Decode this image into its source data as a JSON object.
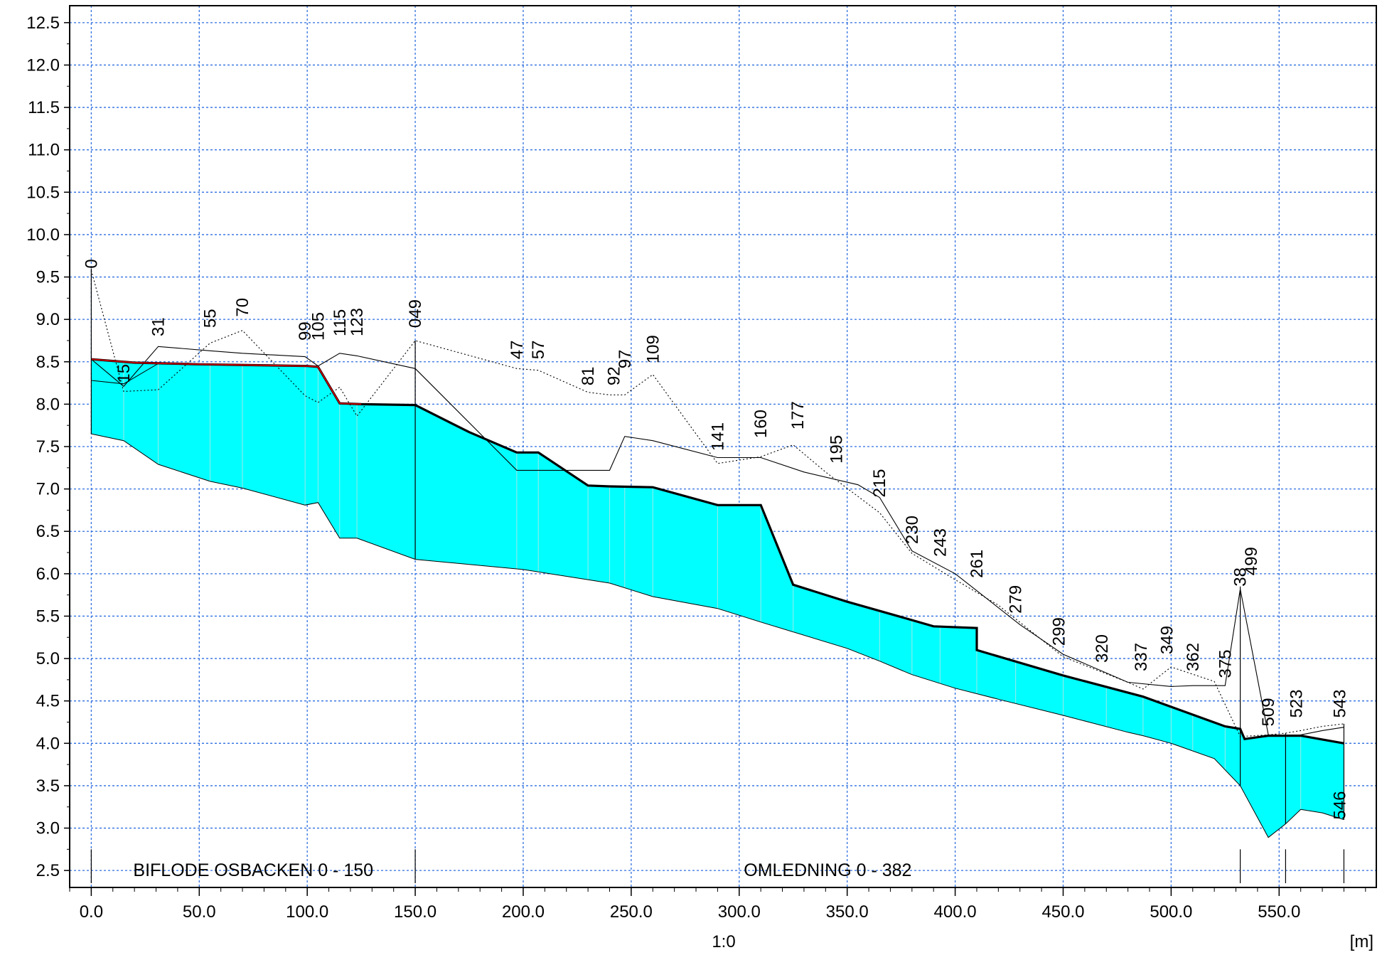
{
  "chart_data": {
    "type": "area",
    "title": "",
    "xlabel": "1:0",
    "unit_label": "[m]",
    "xlim": [
      -10,
      595
    ],
    "ylim": [
      2.3,
      12.7
    ],
    "grid": true,
    "x_ticks": [
      0,
      50,
      100,
      150,
      200,
      250,
      300,
      350,
      400,
      450,
      500,
      550
    ],
    "x_tick_labels": [
      "0.0",
      "50.0",
      "100.0",
      "150.0",
      "200.0",
      "250.0",
      "300.0",
      "350.0",
      "400.0",
      "450.0",
      "500.0",
      "550.0"
    ],
    "y_ticks": [
      2.5,
      3.0,
      3.5,
      4.0,
      4.5,
      5.0,
      5.5,
      6.0,
      6.5,
      7.0,
      7.5,
      8.0,
      8.5,
      9.0,
      9.5,
      10.0,
      10.5,
      11.0,
      11.5,
      12.0,
      12.5
    ],
    "y_tick_labels": [
      "2.5",
      "3.0",
      "3.5",
      "4.0",
      "4.5",
      "5.0",
      "5.5",
      "6.0",
      "6.5",
      "7.0",
      "7.5",
      "8.0",
      "8.5",
      "9.0",
      "9.5",
      "10.0",
      "10.5",
      "11.0",
      "11.5",
      "12.0",
      "12.5"
    ],
    "colors": {
      "water_fill": "#00ffff",
      "grid": "#2f6fe0",
      "water_surface": "#000000",
      "highlight": "#c00000"
    },
    "series": [
      {
        "role": "water_surface",
        "x": [
          0,
          20,
          50,
          100,
          105,
          115,
          125,
          150,
          175,
          197,
          207,
          230,
          240,
          260,
          290,
          310,
          325,
          350,
          375,
          390,
          410,
          410,
          450,
          487,
          525,
          532,
          534,
          545,
          553,
          560,
          580
        ],
        "values": [
          8.53,
          8.49,
          8.47,
          8.45,
          8.44,
          8.01,
          8.0,
          7.99,
          7.67,
          7.43,
          7.43,
          7.04,
          7.03,
          7.02,
          6.81,
          6.81,
          5.87,
          5.67,
          5.49,
          5.38,
          5.36,
          5.1,
          4.8,
          4.55,
          4.2,
          4.17,
          4.05,
          4.09,
          4.09,
          4.09,
          4.0
        ]
      },
      {
        "role": "highlight_segment",
        "x": [
          0,
          20,
          50,
          100,
          105,
          115,
          125
        ],
        "values": [
          8.53,
          8.49,
          8.47,
          8.45,
          8.44,
          8.01,
          8.0
        ]
      },
      {
        "role": "channel_bottom",
        "x": [
          0,
          15,
          31,
          55,
          70,
          99,
          105,
          115,
          123,
          150,
          200,
          240,
          260,
          290,
          310,
          350,
          365,
          380,
          400,
          420,
          450,
          480,
          487,
          500,
          520,
          532,
          545,
          553,
          560,
          570,
          580
        ],
        "values": [
          7.65,
          7.57,
          7.29,
          7.09,
          7.01,
          6.81,
          6.84,
          6.42,
          6.42,
          6.17,
          6.05,
          5.89,
          5.73,
          5.59,
          5.43,
          5.12,
          4.97,
          4.81,
          4.65,
          4.52,
          4.33,
          4.13,
          4.09,
          4.0,
          3.82,
          3.5,
          2.89,
          3.05,
          3.22,
          3.18,
          3.1
        ]
      },
      {
        "role": "upper_bottom_line",
        "x": [
          0,
          15,
          31,
          55,
          70,
          99,
          105
        ],
        "values": [
          8.28,
          8.24,
          8.48,
          8.47,
          8.46,
          8.45,
          8.45
        ]
      },
      {
        "role": "left_ground",
        "x": [
          0,
          15,
          31,
          55,
          70,
          99,
          105,
          115,
          123,
          150,
          197,
          207,
          240,
          247,
          260,
          290,
          310,
          330,
          355,
          365,
          380,
          400,
          410,
          430,
          450,
          480,
          500,
          510,
          525,
          532,
          545,
          553,
          560,
          570,
          580
        ],
        "values": [
          8.53,
          8.21,
          8.68,
          8.63,
          8.6,
          8.56,
          8.45,
          8.6,
          8.57,
          8.42,
          7.22,
          7.22,
          7.22,
          7.62,
          7.57,
          7.37,
          7.37,
          7.2,
          7.05,
          6.9,
          6.27,
          6.0,
          5.8,
          5.4,
          5.05,
          4.72,
          4.67,
          4.68,
          4.68,
          5.82,
          4.1,
          4.09,
          4.1,
          4.15,
          4.19
        ]
      },
      {
        "role": "right_ground",
        "x": [
          0,
          15,
          31,
          55,
          70,
          99,
          105,
          115,
          123,
          150,
          197,
          207,
          230,
          240,
          247,
          260,
          290,
          310,
          325,
          340,
          365,
          380,
          400,
          420,
          450,
          480,
          487,
          500,
          520,
          532,
          545,
          553,
          560,
          570,
          580
        ],
        "values": [
          9.58,
          8.15,
          8.17,
          8.72,
          8.87,
          8.1,
          8.02,
          8.2,
          7.86,
          8.75,
          8.42,
          8.4,
          8.14,
          8.11,
          8.11,
          8.35,
          7.3,
          7.38,
          7.52,
          7.2,
          6.72,
          6.24,
          5.93,
          5.63,
          5.02,
          4.72,
          4.64,
          4.9,
          4.73,
          4.08,
          4.1,
          4.12,
          4.15,
          4.2,
          4.23
        ]
      }
    ],
    "section_labels": [
      {
        "x": 0,
        "y": 9.6,
        "label": "0"
      },
      {
        "x": 15,
        "y": 8.25,
        "label": "15"
      },
      {
        "x": 31,
        "y": 8.8,
        "label": "31"
      },
      {
        "x": 55,
        "y": 8.9,
        "label": "55"
      },
      {
        "x": 70,
        "y": 9.03,
        "label": "70"
      },
      {
        "x": 99,
        "y": 8.75,
        "label": "99"
      },
      {
        "x": 105,
        "y": 8.75,
        "label": "105"
      },
      {
        "x": 115,
        "y": 8.8,
        "label": "115"
      },
      {
        "x": 123,
        "y": 8.8,
        "label": "123"
      },
      {
        "x": 150,
        "y": 8.9,
        "label": "049"
      },
      {
        "x": 197,
        "y": 8.53,
        "label": "47"
      },
      {
        "x": 207,
        "y": 8.53,
        "label": "57"
      },
      {
        "x": 230,
        "y": 8.22,
        "label": "81"
      },
      {
        "x": 242,
        "y": 8.22,
        "label": "92"
      },
      {
        "x": 247,
        "y": 8.42,
        "label": "97"
      },
      {
        "x": 260,
        "y": 8.48,
        "label": "109"
      },
      {
        "x": 290,
        "y": 7.45,
        "label": "141"
      },
      {
        "x": 310,
        "y": 7.6,
        "label": "160"
      },
      {
        "x": 327,
        "y": 7.7,
        "label": "177"
      },
      {
        "x": 345,
        "y": 7.3,
        "label": "195"
      },
      {
        "x": 365,
        "y": 6.9,
        "label": "215"
      },
      {
        "x": 380,
        "y": 6.35,
        "label": "230"
      },
      {
        "x": 393,
        "y": 6.2,
        "label": "243"
      },
      {
        "x": 410,
        "y": 5.95,
        "label": "261"
      },
      {
        "x": 428,
        "y": 5.53,
        "label": "279"
      },
      {
        "x": 448,
        "y": 5.15,
        "label": "299"
      },
      {
        "x": 468,
        "y": 4.95,
        "label": "320"
      },
      {
        "x": 486,
        "y": 4.85,
        "label": "337"
      },
      {
        "x": 498,
        "y": 5.05,
        "label": "349"
      },
      {
        "x": 510,
        "y": 4.85,
        "label": "362"
      },
      {
        "x": 525,
        "y": 4.77,
        "label": "375"
      },
      {
        "x": 532,
        "y": 5.85,
        "label": "38"
      },
      {
        "x": 537,
        "y": 5.98,
        "label": "499"
      },
      {
        "x": 545,
        "y": 4.2,
        "label": "509"
      },
      {
        "x": 558,
        "y": 4.3,
        "label": "523"
      },
      {
        "x": 578,
        "y": 4.3,
        "label": "543"
      },
      {
        "x": 578,
        "y": 3.1,
        "label": "546"
      }
    ],
    "branch_labels": [
      {
        "x_start": 0,
        "x_end": 150,
        "label": "BIFLODE OSBACKEN  0 - 150"
      },
      {
        "x_start": 150,
        "x_end": 532,
        "label": "OMLEDNING  0 - 382"
      }
    ],
    "branch_boundaries": [
      0,
      150,
      532,
      553,
      580
    ],
    "section_verticals": [
      0,
      15,
      31,
      55,
      70,
      99,
      105,
      115,
      123,
      150,
      197,
      207,
      230,
      240,
      247,
      260,
      290,
      310,
      325,
      365,
      380,
      393,
      410,
      428,
      450,
      470,
      487,
      500,
      510,
      525,
      532,
      553,
      560,
      580
    ]
  }
}
